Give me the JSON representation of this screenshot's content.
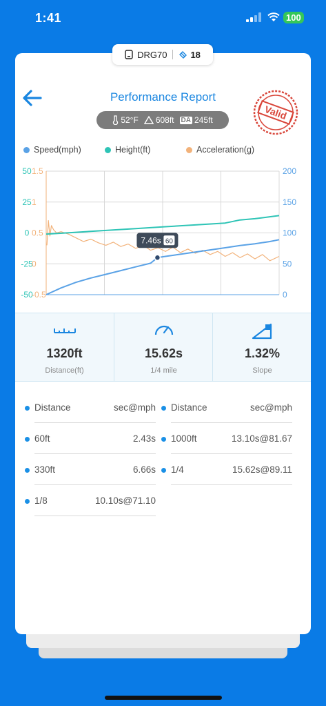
{
  "status": {
    "time": "1:41",
    "battery": "100"
  },
  "device": {
    "name": "DRG70",
    "count": "18"
  },
  "header": {
    "title": "Performance Report",
    "stamp": "Valid"
  },
  "conditions": {
    "temp": "52°F",
    "altitude": "608ft",
    "da_label": "DA",
    "da_value": "245ft"
  },
  "legend": [
    {
      "label": "Speed(mph)",
      "color": "#5aa2e6"
    },
    {
      "label": "Height(ft)",
      "color": "#2ec4b6"
    },
    {
      "label": "Acceleration(g)",
      "color": "#f2b27a"
    }
  ],
  "tooltip": {
    "time": "7.46s",
    "value": "60"
  },
  "chart_data": {
    "type": "line",
    "x_range": [
      0,
      15.62
    ],
    "axes": {
      "left_outer": {
        "ticks": [
          "50",
          "25",
          "0",
          "-25",
          "-50"
        ],
        "color": "#2ec4b6"
      },
      "left_inner": {
        "ticks": [
          "1.5",
          "1",
          "0.5",
          "0",
          "-0.5"
        ],
        "color": "#f2b27a"
      },
      "right": {
        "ticks": [
          "200",
          "150",
          "100",
          "50",
          "0"
        ],
        "color": "#5aa2e6"
      }
    },
    "series": [
      {
        "name": "Speed(mph)",
        "axis": "right",
        "ylim": [
          0,
          200
        ],
        "x": [
          0,
          1,
          2,
          3,
          4,
          5,
          6,
          7,
          7.46,
          8,
          9,
          10,
          11,
          12,
          13,
          14,
          15,
          15.62
        ],
        "y": [
          0,
          11,
          20,
          27,
          33,
          39,
          45,
          51,
          60,
          62,
          65.5,
          69,
          72.5,
          76,
          79.5,
          82.5,
          86,
          89
        ]
      },
      {
        "name": "Height(ft)",
        "axis": "left_outer",
        "ylim": [
          -50,
          50
        ],
        "x": [
          0,
          2,
          4,
          6,
          8,
          10,
          12,
          13,
          14,
          15.62
        ],
        "y": [
          -1,
          0.5,
          2,
          3.5,
          5,
          6.5,
          8,
          10.5,
          11.5,
          14
        ]
      },
      {
        "name": "Acceleration(g)",
        "axis": "left_inner",
        "ylim": [
          -0.5,
          1.5
        ],
        "x": [
          0.05,
          0.15,
          0.25,
          0.35,
          0.5,
          0.7,
          1,
          1.5,
          2,
          2.5,
          3,
          3.5,
          4,
          4.5,
          5,
          5.5,
          6,
          6.5,
          7,
          7.5,
          8,
          8.5,
          9,
          9.5,
          10,
          10.5,
          11,
          11.5,
          12,
          12.5,
          13,
          13.5,
          14,
          14.5,
          15,
          15.62
        ],
        "y": [
          0.3,
          0.7,
          0.45,
          0.62,
          0.55,
          0.5,
          0.52,
          0.48,
          0.42,
          0.36,
          0.4,
          0.34,
          0.3,
          0.35,
          0.28,
          0.32,
          0.25,
          0.3,
          0.22,
          0.26,
          0.2,
          0.27,
          0.18,
          0.24,
          0.17,
          0.22,
          0.15,
          0.2,
          0.12,
          0.18,
          0.1,
          0.16,
          0.08,
          0.15,
          0.05,
          0.12
        ]
      }
    ]
  },
  "stats": [
    {
      "value": "1320ft",
      "label": "Distance(ft)"
    },
    {
      "value": "15.62s",
      "label": "1/4 mile"
    },
    {
      "value": "1.32%",
      "label": "Slope"
    }
  ],
  "table": {
    "header_key": "Distance",
    "header_value": "sec@mph",
    "left": [
      {
        "k": "60ft",
        "v": "2.43s"
      },
      {
        "k": "330ft",
        "v": "6.66s"
      },
      {
        "k": "1/8",
        "v": "10.10s@71.10"
      }
    ],
    "right": [
      {
        "k": "1000ft",
        "v": "13.10s@81.67"
      },
      {
        "k": "1/4",
        "v": "15.62s@89.11"
      }
    ]
  }
}
